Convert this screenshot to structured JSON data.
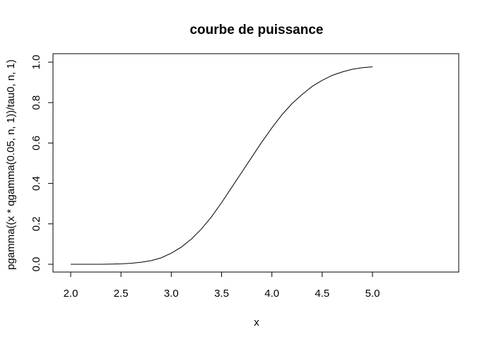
{
  "chart_data": {
    "type": "line",
    "title": "courbe de puissance",
    "xlabel": "x",
    "ylabel": "pgamma((x * qgamma(0.05, n, 1))/tau0, n, 1)",
    "xlim": [
      2.0,
      5.0
    ],
    "ylim": [
      0.0,
      1.0
    ],
    "x_ticks": [
      "2.0",
      "2.5",
      "3.0",
      "3.5",
      "4.0",
      "4.5",
      "5.0"
    ],
    "y_ticks": [
      "0.0",
      "0.2",
      "0.4",
      "0.6",
      "0.8",
      "1.0"
    ],
    "grid": false,
    "series": [
      {
        "x": [
          2.0,
          2.1,
          2.2,
          2.3,
          2.4,
          2.5,
          2.6,
          2.7,
          2.8,
          2.9,
          3.0,
          3.1,
          3.2,
          3.3,
          3.4,
          3.5,
          3.6,
          3.7,
          3.8,
          3.9,
          4.0,
          4.1,
          4.2,
          4.3,
          4.4,
          4.5,
          4.6,
          4.7,
          4.8,
          4.9,
          5.0
        ],
        "y": [
          0.0,
          0.0,
          0.0,
          0.0,
          0.001,
          0.002,
          0.005,
          0.01,
          0.018,
          0.032,
          0.055,
          0.085,
          0.125,
          0.175,
          0.235,
          0.305,
          0.38,
          0.455,
          0.53,
          0.605,
          0.675,
          0.74,
          0.795,
          0.84,
          0.88,
          0.91,
          0.935,
          0.952,
          0.965,
          0.973,
          0.977
        ]
      }
    ]
  }
}
